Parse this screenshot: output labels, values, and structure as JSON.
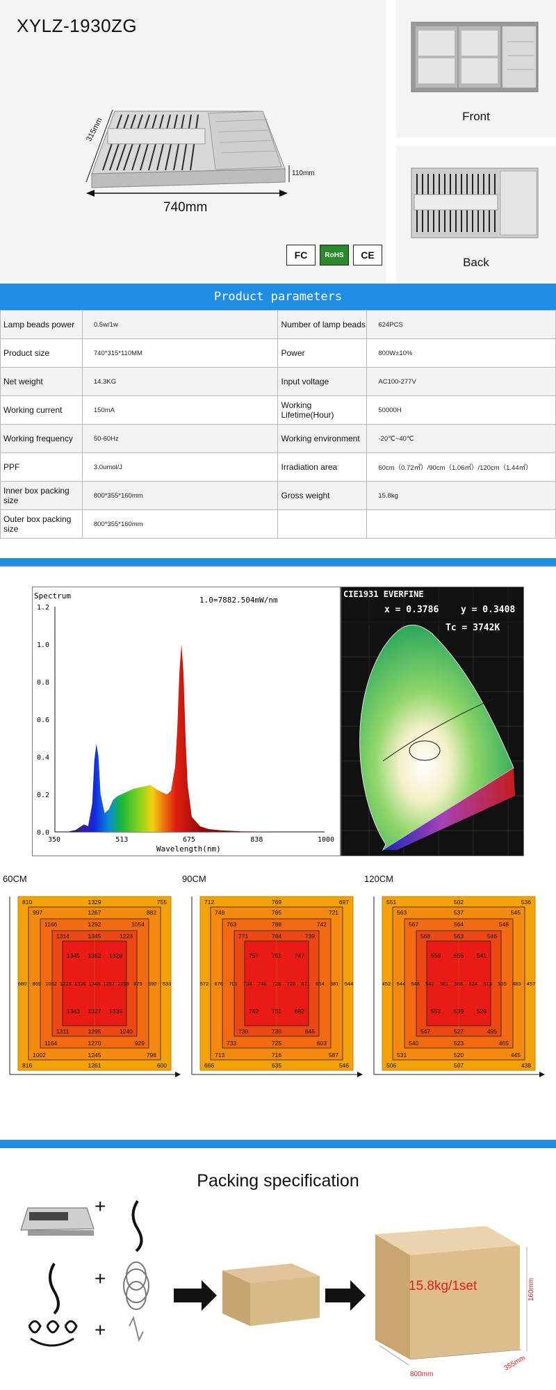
{
  "product": {
    "model": "XYLZ-1930ZG",
    "dim_depth": "315mm",
    "dim_height": "110mm",
    "dim_width": "740mm",
    "views": {
      "front": "Front",
      "back": "Back"
    },
    "certifications": [
      "FC",
      "RoHS",
      "CE"
    ]
  },
  "params": {
    "title": "Product parameters",
    "rows": [
      {
        "l1": "Lamp beads power",
        "v1": "0.5w/1w",
        "l2": "Number of lamp beads",
        "v2": "624PCS"
      },
      {
        "l1": "Product size",
        "v1": "740*315*110MM",
        "l2": "Power",
        "v2": "800W±10%"
      },
      {
        "l1": "Net weight",
        "v1": "14.3KG",
        "l2": "Input voltage",
        "v2": "AC100-277V"
      },
      {
        "l1": "Working current",
        "v1": "150mA",
        "l2": "Working Lifetime(Hour)",
        "v2": "50000H"
      },
      {
        "l1": "Working frequency",
        "v1": "50-60Hz",
        "l2": "Working environment",
        "v2": "-20℃~40℃"
      },
      {
        "l1": "PPF",
        "v1": "3.0umol/J",
        "l2": "Irradiation area",
        "v2": "60cm（0.72㎡）/90cm（1.06㎡）/120cm（1.44㎡）"
      },
      {
        "l1": "Inner box packing size",
        "v1": "800*355*160mm",
        "l2": "Gross weight",
        "v2": "15.8kg"
      },
      {
        "l1": "Outer box packing size",
        "v1": "800*355*160mm",
        "l2": "",
        "v2": ""
      }
    ]
  },
  "chart_data": [
    {
      "type": "line",
      "title": "Spectrum",
      "annotation": "1.0=7882.504mW/nm",
      "xlabel": "Wavelength(nm)",
      "ylabel": "",
      "xlim": [
        350,
        1000
      ],
      "ylim": [
        0,
        1.2
      ],
      "x_ticks": [
        "350",
        "513",
        "675",
        "838",
        "1000"
      ],
      "y_ticks": [
        "0.0",
        "0.2",
        "0.4",
        "0.6",
        "0.8",
        "1.0",
        "1.2"
      ],
      "x": [
        350,
        380,
        400,
        420,
        430,
        440,
        445,
        450,
        455,
        460,
        470,
        480,
        490,
        500,
        520,
        540,
        560,
        580,
        600,
        620,
        630,
        640,
        645,
        650,
        655,
        660,
        665,
        670,
        680,
        700,
        720,
        750,
        800,
        900,
        1000
      ],
      "y": [
        0.0,
        0.0,
        0.01,
        0.04,
        0.03,
        0.15,
        0.38,
        0.47,
        0.4,
        0.2,
        0.1,
        0.12,
        0.17,
        0.19,
        0.21,
        0.23,
        0.24,
        0.25,
        0.22,
        0.2,
        0.22,
        0.35,
        0.55,
        0.85,
        1.0,
        0.85,
        0.5,
        0.25,
        0.08,
        0.03,
        0.015,
        0.008,
        0.003,
        0.0,
        0.0
      ]
    },
    {
      "type": "scatter",
      "title": "CIE1931 EVERFINE",
      "x_value": "x = 0.3786",
      "y_value": "y = 0.3408",
      "tc": "Tc = 3742K"
    }
  ],
  "heatmaps": [
    {
      "title": "60CM",
      "rings": [
        {
          "tl": "810",
          "tc": "1329",
          "tr": "755",
          "bl": "816",
          "bc": "1261",
          "br": "600"
        },
        {
          "tl": "997",
          "tc": "1267",
          "tr": "882",
          "bl": "1002",
          "bc": "1245",
          "br": "798"
        },
        {
          "tl": "1166",
          "tc": "1292",
          "tr": "1054",
          "bl": "1164",
          "bc": "1270",
          "br": "929"
        },
        {
          "tl": "1314",
          "tc": "1345",
          "tr": "1223",
          "bl": "1311",
          "bc": "1295",
          "br": "1240"
        },
        {
          "tl": "1345",
          "tc": "1362",
          "tr": "1328",
          "bl": "1343",
          "bc": "1327",
          "br": "1335"
        }
      ],
      "middle": [
        "680",
        "869",
        "1062",
        "1225",
        "1336",
        "1348",
        "1257",
        "1099",
        "879",
        "690",
        "533"
      ]
    },
    {
      "title": "90CM",
      "rings": [
        {
          "tl": "712",
          "tc": "769",
          "tr": "697",
          "bl": "666",
          "bc": "635",
          "br": "546"
        },
        {
          "tl": "749",
          "tc": "785",
          "tr": "721",
          "bl": "713",
          "bc": "716",
          "br": "587"
        },
        {
          "tl": "763",
          "tc": "788",
          "tr": "742",
          "bl": "733",
          "bc": "725",
          "br": "603"
        },
        {
          "tl": "771",
          "tc": "784",
          "tr": "739",
          "bl": "730",
          "bc": "730",
          "br": "646"
        },
        {
          "tl": "757",
          "tc": "761",
          "tr": "747",
          "bl": "742",
          "bc": "731",
          "br": "682"
        }
      ],
      "middle": [
        "572",
        "676",
        "701",
        "738",
        "748",
        "728",
        "726",
        "671",
        "654",
        "581",
        "544"
      ]
    },
    {
      "title": "120CM",
      "rings": [
        {
          "tl": "551",
          "tc": "502",
          "tr": "536",
          "bl": "506",
          "bc": "507",
          "br": "438"
        },
        {
          "tl": "563",
          "tc": "537",
          "tr": "545",
          "bl": "531",
          "bc": "520",
          "br": "445"
        },
        {
          "tl": "567",
          "tc": "564",
          "tr": "548",
          "bl": "540",
          "bc": "523",
          "br": "465"
        },
        {
          "tl": "568",
          "tc": "563",
          "tr": "546",
          "bl": "547",
          "bc": "527",
          "br": "495"
        },
        {
          "tl": "559",
          "tc": "555",
          "tr": "541",
          "bl": "552",
          "bc": "539",
          "br": "526"
        }
      ],
      "middle": [
        "452",
        "544",
        "548",
        "542",
        "551",
        "566",
        "524",
        "513",
        "505",
        "483",
        "457"
      ]
    }
  ],
  "packing": {
    "title": "Packing specification",
    "weight_label": "15.8kg/1set",
    "box_length": "800mm",
    "box_width": "355mm",
    "box_height": "160mm"
  },
  "colors": {
    "accent": "#1f8ee2",
    "heat_outer": "#f4a20a",
    "heat_inner": "#e81c14",
    "weight_text": "#e02020"
  }
}
